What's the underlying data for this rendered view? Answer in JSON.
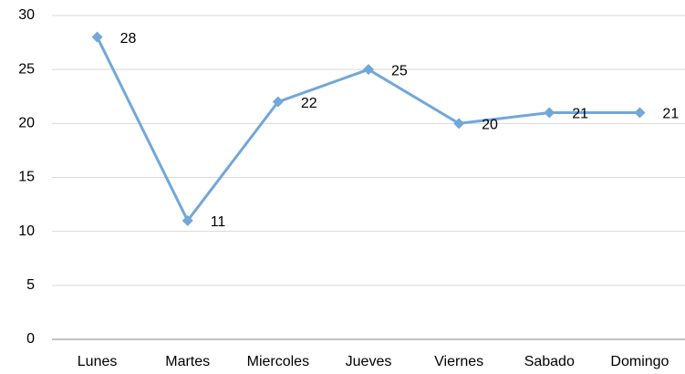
{
  "chart_data": {
    "type": "line",
    "categories": [
      "Lunes",
      "Martes",
      "Miercoles",
      "Jueves",
      "Viernes",
      "Sabado",
      "Domingo"
    ],
    "series": [
      {
        "color": "#72a7d9",
        "values": [
          28,
          11,
          22,
          25,
          20,
          21,
          21
        ]
      }
    ],
    "ylim": [
      0,
      30
    ],
    "yticks": [
      0,
      5,
      10,
      15,
      20,
      25,
      30
    ],
    "grid": true,
    "markers": "diamond",
    "data_labels": true
  }
}
